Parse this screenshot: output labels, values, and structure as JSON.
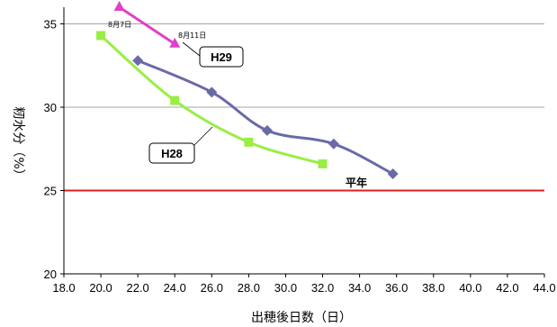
{
  "chart_data": {
    "type": "line",
    "xlabel": "出穂後日数（日）",
    "ylabel": "籾水分（%）",
    "xlim": [
      18,
      44
    ],
    "ylim": [
      20,
      36
    ],
    "x_ticks": [
      "18.0",
      "20.0",
      "22.0",
      "24.0",
      "26.0",
      "28.0",
      "30.0",
      "32.0",
      "34.0",
      "36.0",
      "38.0",
      "40.0",
      "42.0",
      "44.0"
    ],
    "y_ticks": [
      "20",
      "25",
      "30",
      "35"
    ],
    "grid": "horizontal",
    "reference_line": {
      "y": 25,
      "color": "#e02020"
    },
    "series": [
      {
        "name": "H29",
        "color": "#e040c8",
        "marker": "triangle",
        "x": [
          21.0,
          24.0
        ],
        "y": [
          36.0,
          33.8
        ]
      },
      {
        "name": "H28",
        "color": "#99ee44",
        "marker": "square",
        "x": [
          20.0,
          24.0,
          28.0,
          32.0
        ],
        "y": [
          34.3,
          30.4,
          27.9,
          26.6
        ]
      },
      {
        "name": "平年",
        "color": "#6a6aa8",
        "marker": "diamond",
        "x": [
          22.0,
          26.0,
          29.0,
          32.6,
          35.8
        ],
        "y": [
          32.8,
          30.9,
          28.6,
          27.8,
          26.0
        ]
      }
    ],
    "annotations": [
      "8月7日",
      "8月11日"
    ]
  }
}
